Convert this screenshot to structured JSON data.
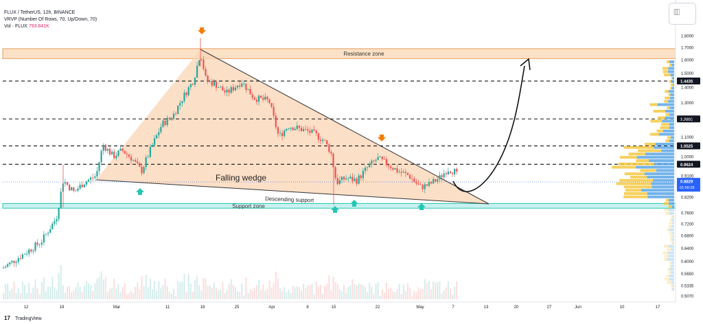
{
  "header": {
    "symbol_line": "FLUX / TetherUS, 12h, BINANCE",
    "vrvp_line": "VRVP (Number Of Rows, 70, Up/Down, 70)",
    "vol_label": "Vol · FLUX",
    "vol_value": "793.841K"
  },
  "footer": {
    "brand": "TradingView"
  },
  "toolbar": {
    "camera_icon": "camera-icon"
  },
  "colors": {
    "up": "#26a69a",
    "down": "#ef5350",
    "wedge_fill": "#fad4b4",
    "resistance_fill": "#fbe1c6",
    "support_fill": "#c9f1ef",
    "arrow_orange": "#f57c00",
    "arrow_teal": "#26c6b4",
    "vp_blue": "#5aa6e6",
    "vp_yellow": "#f5c842",
    "price_tag": "#2962ff"
  },
  "annotations": {
    "resistance": "Resistance zone",
    "support": "Support zone",
    "wedge": "Falling wedge",
    "descending": "Descending support"
  },
  "chart_data": {
    "type": "candlestick",
    "y_axis": {
      "scale": "log",
      "ticks": [
        "1.8000",
        "1.7000",
        "1.6000",
        "1.5000",
        "1.4000",
        "1.3000",
        "1.2000",
        "1.1000",
        "1.0000",
        "0.9100",
        "0.8200",
        "0.7600",
        "0.7200",
        "0.6800",
        "0.6400",
        "0.6000",
        "0.5650",
        "0.5335",
        "0.5070"
      ]
    },
    "x_axis": {
      "ticks": [
        "12",
        "19",
        "Mar",
        "11",
        "18",
        "25",
        "Apr",
        "8",
        "15",
        "22",
        "May",
        "7",
        "13",
        "20",
        "27",
        "Jun",
        "10",
        "17"
      ]
    },
    "price_levels": [
      {
        "label": "1.4435",
        "value": 1.4435
      },
      {
        "label": "1.2001",
        "value": 1.2001
      },
      {
        "label": "1.0525",
        "value": 1.0525
      },
      {
        "label": "0.9624",
        "value": 0.9624
      }
    ],
    "current_price": {
      "label": "0.8829",
      "countdown": "01:56:28",
      "value": 0.8829
    },
    "zones": {
      "resistance": [
        1.61,
        1.69
      ],
      "support": [
        0.777,
        0.795
      ]
    },
    "candles": []
  }
}
